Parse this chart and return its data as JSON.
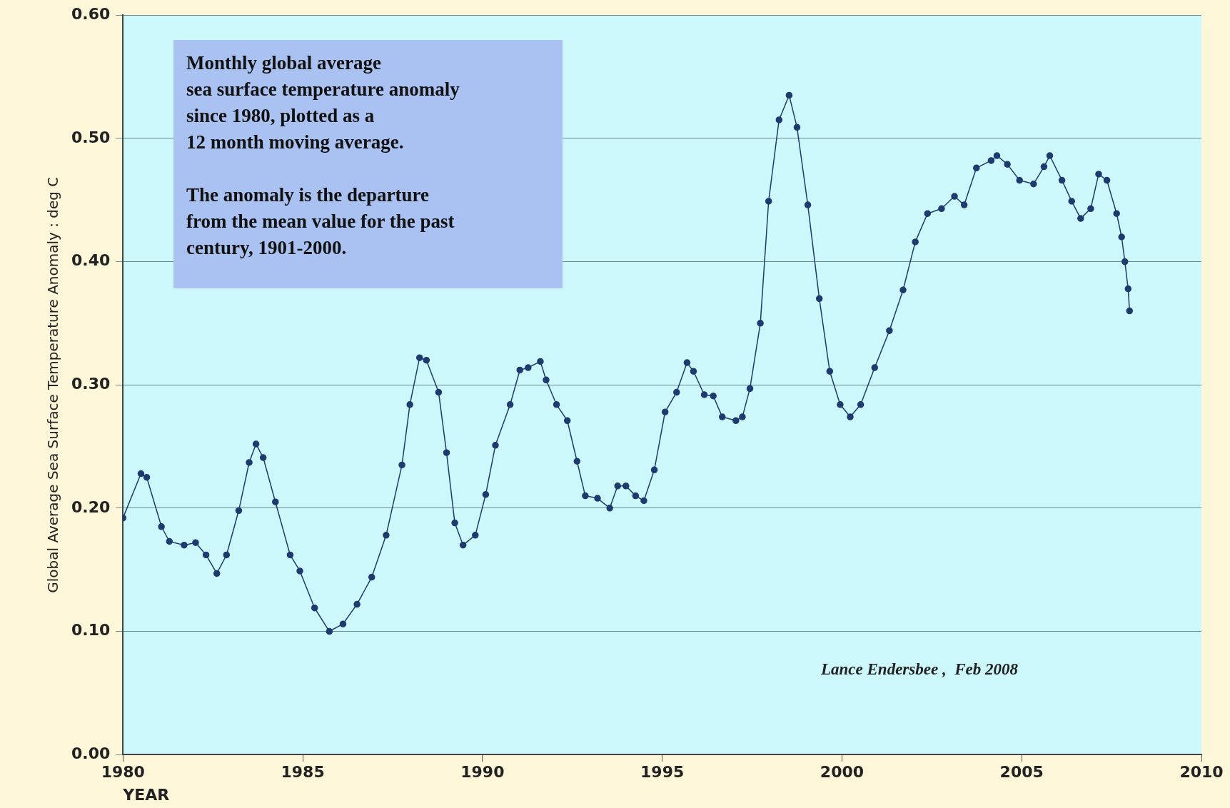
{
  "chart_data": {
    "type": "line",
    "xlabel": "YEAR",
    "ylabel": "Global Average Sea Surface Temperature Anomaly : deg C",
    "annotations": [
      "Monthly global  average\n sea surface temperature anomaly\nsince 1980,  plotted as a\n12 month moving average.\n\nThe anomaly is the departure\nfrom the mean value for the past\ncentury, 1901-2000.",
      "Lance Endersbee ,  Feb 2008"
    ],
    "x": [
      1980.0,
      1980.5,
      1980.66,
      1981.07,
      1981.29,
      1981.7,
      1982.02,
      1982.31,
      1982.61,
      1982.88,
      1983.22,
      1983.51,
      1983.7,
      1983.9,
      1984.24,
      1984.65,
      1984.92,
      1985.33,
      1985.74,
      1986.12,
      1986.51,
      1986.92,
      1987.32,
      1987.76,
      1987.98,
      1988.25,
      1988.44,
      1988.78,
      1989.0,
      1989.23,
      1989.46,
      1989.8,
      1990.09,
      1990.36,
      1990.77,
      1991.04,
      1991.27,
      1991.61,
      1991.77,
      1992.06,
      1992.36,
      1992.63,
      1992.86,
      1993.2,
      1993.54,
      1993.76,
      1993.99,
      1994.26,
      1994.49,
      1994.78,
      1995.08,
      1995.4,
      1995.69,
      1995.87,
      1996.17,
      1996.42,
      1996.67,
      1997.05,
      1997.23,
      1997.44,
      1997.73,
      1997.96,
      1998.25,
      1998.53,
      1998.75,
      1999.05,
      1999.37,
      1999.66,
      1999.95,
      2000.23,
      2000.52,
      2000.91,
      2001.32,
      2001.7,
      2002.04,
      2002.38,
      2002.77,
      2003.13,
      2003.4,
      2003.74,
      2004.15,
      2004.31,
      2004.6,
      2004.94,
      2005.33,
      2005.62,
      2005.78,
      2006.12,
      2006.39,
      2006.64,
      2006.92,
      2007.14,
      2007.37,
      2007.64,
      2007.78,
      2007.87,
      2007.96,
      2008.0
    ],
    "series": [
      {
        "color": "#1f3a6e",
        "values": [
          0.192,
          0.228,
          0.225,
          0.185,
          0.173,
          0.17,
          0.172,
          0.162,
          0.147,
          0.162,
          0.198,
          0.237,
          0.252,
          0.241,
          0.205,
          0.162,
          0.149,
          0.119,
          0.1,
          0.106,
          0.122,
          0.144,
          0.178,
          0.235,
          0.284,
          0.322,
          0.32,
          0.294,
          0.245,
          0.188,
          0.17,
          0.178,
          0.211,
          0.251,
          0.284,
          0.312,
          0.314,
          0.319,
          0.304,
          0.284,
          0.271,
          0.238,
          0.21,
          0.208,
          0.2,
          0.218,
          0.218,
          0.21,
          0.206,
          0.231,
          0.278,
          0.294,
          0.318,
          0.311,
          0.292,
          0.291,
          0.274,
          0.271,
          0.274,
          0.297,
          0.35,
          0.449,
          0.515,
          0.535,
          0.509,
          0.446,
          0.37,
          0.311,
          0.284,
          0.274,
          0.284,
          0.314,
          0.344,
          0.377,
          0.416,
          0.439,
          0.443,
          0.453,
          0.446,
          0.476,
          0.482,
          0.486,
          0.479,
          0.466,
          0.463,
          0.477,
          0.486,
          0.466,
          0.449,
          0.435,
          0.443,
          0.471,
          0.466,
          0.439,
          0.42,
          0.4,
          0.378,
          0.36
        ]
      }
    ],
    "xlim": [
      1980,
      2010
    ],
    "xticks": [
      1980,
      1985,
      1990,
      1995,
      2000,
      2005,
      2010
    ],
    "ylim": [
      0,
      0.6
    ],
    "yticks": [
      {
        "value": 0,
        "label": "0.00"
      },
      {
        "value": 0.1,
        "label": "0.10"
      },
      {
        "value": 0.2,
        "label": "0.20"
      },
      {
        "value": 0.3,
        "label": "0.30"
      },
      {
        "value": 0.4,
        "label": "0.40"
      },
      {
        "value": 0.5,
        "label": "0.50"
      },
      {
        "value": 0.6,
        "label": "0.60"
      }
    ],
    "grid": "y",
    "legend": false,
    "marker": "circle",
    "line_style": "solid"
  }
}
